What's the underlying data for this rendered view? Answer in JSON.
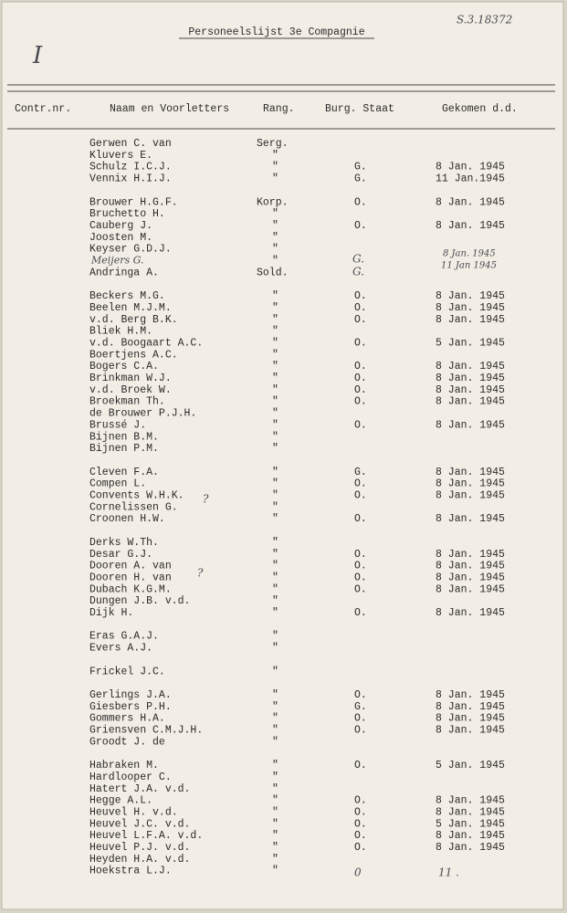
{
  "header": {
    "title": "Personeelslijst 3e Compagnie",
    "columns": [
      "Contr.nr.",
      "Naam en Voorletters",
      "Rang.",
      "Burg. Staat",
      "Gekomen d.d."
    ]
  },
  "groups": [
    [
      {
        "name": "Gerwen C. van",
        "rank": "Serg."
      },
      {
        "name": "Kluvers E.",
        "rank": "\""
      },
      {
        "name": "Schulz I.C.J.",
        "rank": "\"",
        "status": "G.",
        "date": "8 Jan. 1945"
      },
      {
        "name": "Vennix H.I.J.",
        "rank": "\"",
        "status": "G.",
        "date": "11 Jan.1945"
      }
    ],
    [
      {
        "name": "Brouwer H.G.F.",
        "rank": "Korp.",
        "status": "O.",
        "date": "8 Jan. 1945"
      },
      {
        "name": "Bruchetto H.",
        "rank": "\""
      },
      {
        "name": "Cauberg J.",
        "rank": "\"",
        "status": "O.",
        "date": "8 Jan. 1945"
      },
      {
        "name": "Joosten M.",
        "rank": "\""
      },
      {
        "name": "Keyser G.D.J.",
        "rank": "\""
      },
      {
        "name": "Meijers G.",
        "rank": "\""
      },
      {
        "name": "Andringa A.",
        "rank": "Sold."
      }
    ],
    [
      {
        "name": "Beckers M.G.",
        "rank": "\"",
        "status": "O.",
        "date": "8 Jan. 1945"
      },
      {
        "name": "Beelen M.J.M.",
        "rank": "\"",
        "status": "O.",
        "date": "8 Jan. 1945"
      },
      {
        "name": "v.d. Berg B.K.",
        "rank": "\"",
        "status": "O.",
        "date": "8 Jan. 1945"
      },
      {
        "name": "Bliek H.M.",
        "rank": "\""
      },
      {
        "name": "v.d. Boogaart A.C.",
        "rank": "\"",
        "status": "O.",
        "date": "5 Jan. 1945"
      },
      {
        "name": "Boertjens A.C.",
        "rank": "\""
      },
      {
        "name": "Bogers C.A.",
        "rank": "\"",
        "status": "O.",
        "date": "8 Jan. 1945"
      },
      {
        "name": "Brinkman W.J.",
        "rank": "\"",
        "status": "O.",
        "date": "8 Jan. 1945"
      },
      {
        "name": "v.d. Broek W.",
        "rank": "\"",
        "status": "O.",
        "date": "8 Jan. 1945"
      },
      {
        "name": "Broekman Th.",
        "rank": "\"",
        "status": "O.",
        "date": "8 Jan. 1945"
      },
      {
        "name": "de Brouwer P.J.H.",
        "rank": "\""
      },
      {
        "name": "Brussé J.",
        "rank": "\"",
        "status": "O.",
        "date": "8 Jan. 1945"
      },
      {
        "name": "Bijnen B.M.",
        "rank": "\""
      },
      {
        "name": "Bijnen P.M.",
        "rank": "\""
      }
    ],
    [
      {
        "name": "Cleven F.A.",
        "rank": "\"",
        "status": "G.",
        "date": "8 Jan. 1945"
      },
      {
        "name": "Compen L.",
        "rank": "\"",
        "status": "O.",
        "date": "8 Jan. 1945"
      },
      {
        "name": "Convents W.H.K.",
        "rank": "\"",
        "status": "O.",
        "date": "8 Jan. 1945"
      },
      {
        "name": "Cornelissen G.",
        "rank": "\""
      },
      {
        "name": "Croonen H.W.",
        "rank": "\"",
        "status": "O.",
        "date": "8 Jan. 1945"
      }
    ],
    [
      {
        "name": "Derks W.Th.",
        "rank": "\""
      },
      {
        "name": "Desar G.J.",
        "rank": "\"",
        "status": "O.",
        "date": "8 Jan. 1945"
      },
      {
        "name": "Dooren A. van",
        "rank": "\"",
        "status": "O.",
        "date": "8 Jan. 1945"
      },
      {
        "name": "Dooren H. van",
        "rank": "\"",
        "status": "O.",
        "date": "8 Jan. 1945"
      },
      {
        "name": "Dubach K.G.M.",
        "rank": "\"",
        "status": "O.",
        "date": "8 Jan. 1945"
      },
      {
        "name": "Dungen J.B. v.d.",
        "rank": "\""
      },
      {
        "name": "Dijk H.",
        "rank": "\"",
        "status": "O.",
        "date": "8 Jan. 1945"
      }
    ],
    [
      {
        "name": "Eras G.A.J.",
        "rank": "\""
      },
      {
        "name": "Evers A.J.",
        "rank": "\""
      }
    ],
    [
      {
        "name": "Frickel J.C.",
        "rank": "\""
      }
    ],
    [
      {
        "name": "Gerlings J.A.",
        "rank": "\"",
        "status": "O.",
        "date": "8 Jan. 1945"
      },
      {
        "name": "Giesbers P.H.",
        "rank": "\"",
        "status": "G.",
        "date": "8 Jan. 1945"
      },
      {
        "name": "Gommers H.A.",
        "rank": "\"",
        "status": "O.",
        "date": "8 Jan. 1945"
      },
      {
        "name": "Griensven C.M.J.H.",
        "rank": "\"",
        "status": "O.",
        "date": "8 Jan. 1945"
      },
      {
        "name": "Groodt J. de",
        "rank": "\""
      }
    ],
    [
      {
        "name": "Habraken M.",
        "rank": "\"",
        "status": "O.",
        "date": "5 Jan. 1945"
      },
      {
        "name": "Hardlooper C.",
        "rank": "\""
      },
      {
        "name": "Hatert J.A. v.d.",
        "rank": "\""
      },
      {
        "name": "Hegge A.L.",
        "rank": "\"",
        "status": "O.",
        "date": "8 Jan. 1945"
      },
      {
        "name": "Heuvel H. v.d.",
        "rank": "\"",
        "status": "O.",
        "date": "8 Jan. 1945"
      },
      {
        "name": "Heuvel J.C. v.d.",
        "rank": "\"",
        "status": "O.",
        "date": "5 Jan. 1945"
      },
      {
        "name": "Heuvel L.F.A. v.d.",
        "rank": "\"",
        "status": "O.",
        "date": "8 Jan. 1945"
      },
      {
        "name": "Heuvel P.J. v.d.",
        "rank": "\"",
        "status": "O.",
        "date": "8 Jan. 1945"
      },
      {
        "name": "Heyden H.A. v.d.",
        "rank": "\""
      },
      {
        "name": "Hoekstra L.J.",
        "rank": "\""
      }
    ]
  ],
  "handwritten": [
    "I",
    "S.3.18372",
    "8 Jan. 1945",
    "11 Jan 1945",
    "G.",
    "G.",
    "?",
    "?",
    "0",
    "11 ."
  ]
}
